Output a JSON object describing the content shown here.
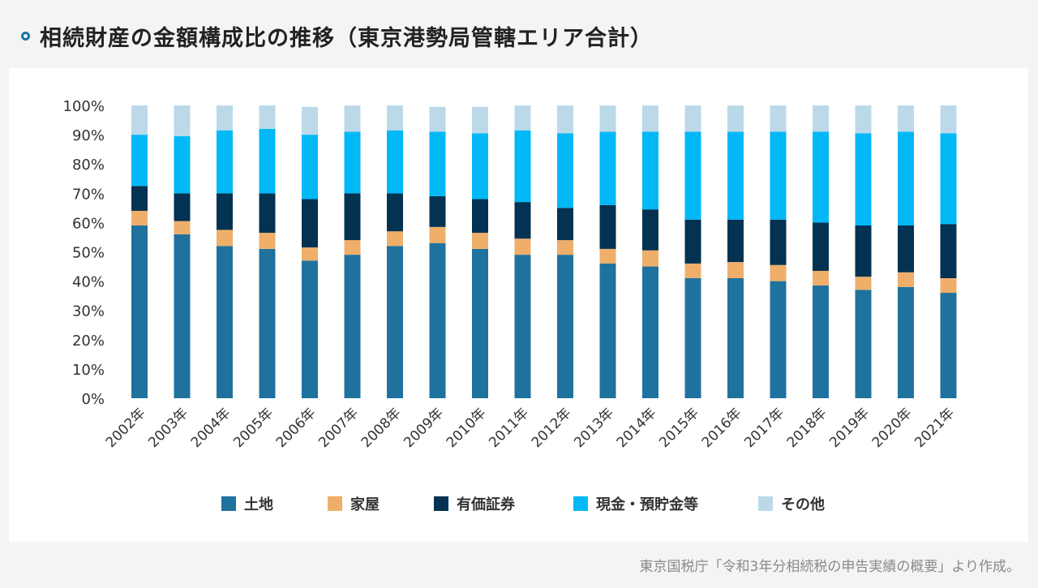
{
  "title": "相続財産の金額構成比の推移（東京港勢局管轄エリア合計）",
  "source": "東京国税庁「令和3年分相続税の申告実績の概要」より作成。",
  "colors": {
    "土地": "#20729e",
    "家屋": "#efaf6a",
    "有価証券": "#043252",
    "現金・預貯金等": "#02b8f7",
    "その他": "#bcd9ea"
  },
  "chart_data": {
    "type": "bar",
    "stacked": true,
    "categories": [
      "2002年",
      "2003年",
      "2004年",
      "2005年",
      "2006年",
      "2007年",
      "2008年",
      "2009年",
      "2010年",
      "2011年",
      "2012年",
      "2013年",
      "2014年",
      "2015年",
      "2016年",
      "2017年",
      "2018年",
      "2019年",
      "2020年",
      "2021年"
    ],
    "overflow_tick_label": "2",
    "yticks": [
      "0%",
      "10%",
      "20%",
      "30%",
      "40%",
      "50%",
      "60%",
      "70%",
      "80%",
      "90%",
      "100%"
    ],
    "ylim": [
      0,
      100
    ],
    "legend_position": "bottom",
    "series": [
      {
        "name": "土地",
        "values": [
          59,
          56,
          52,
          51,
          47,
          49,
          52,
          53,
          51,
          49,
          49,
          46,
          45,
          41,
          41,
          40,
          38.5,
          37,
          38,
          36
        ]
      },
      {
        "name": "家屋",
        "values": [
          5,
          4.5,
          5.5,
          5.5,
          4.5,
          5,
          5,
          5.5,
          5.5,
          5.5,
          5,
          5,
          5.5,
          5,
          5.5,
          5.5,
          5,
          4.5,
          5,
          5
        ]
      },
      {
        "name": "有価証券",
        "values": [
          8.5,
          9.5,
          12.5,
          13.5,
          16.5,
          16,
          13,
          10.5,
          11.5,
          12.5,
          11,
          15,
          14,
          15,
          14.5,
          15.5,
          16.5,
          17.5,
          16,
          18.5
        ]
      },
      {
        "name": "現金・預貯金等",
        "values": [
          17.5,
          19.5,
          21.5,
          22,
          22,
          21,
          21.5,
          22,
          22.5,
          24.5,
          25.5,
          25,
          26.5,
          30,
          30,
          30,
          31,
          31.5,
          32,
          31
        ]
      },
      {
        "name": "その他",
        "values": [
          10,
          10.5,
          8.5,
          8,
          9.5,
          9,
          8.5,
          8.5,
          9,
          8.5,
          9.5,
          9,
          9,
          9,
          9,
          9,
          9,
          9.5,
          9,
          9.5
        ]
      }
    ]
  }
}
